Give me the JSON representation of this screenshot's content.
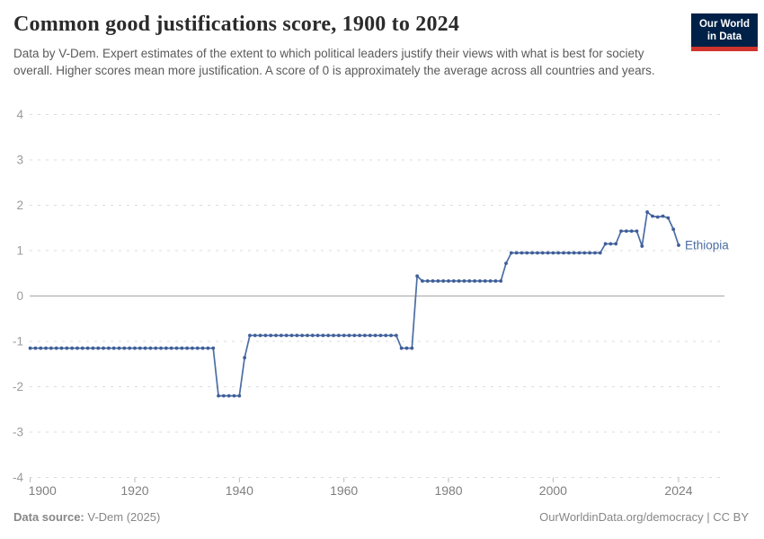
{
  "header": {
    "title": "Common good justifications score, 1900 to 2024",
    "subtitle": "Data by V-Dem. Expert estimates of the extent to which political leaders justify their views with what is best for society overall. Higher scores mean more justification. A score of 0 is approximately the average across all countries and years.",
    "logo": {
      "line1": "Our World",
      "line2": "in Data"
    }
  },
  "footer": {
    "source_label": "Data source:",
    "source_value": " V-Dem (2025)",
    "credit": "OurWorldinData.org/democracy | CC BY"
  },
  "colors": {
    "line": "#4c6da3",
    "marker": "#3f5e99",
    "logo_navy": "#002147",
    "logo_red": "#d0342c",
    "gridline": "#dcdcdc",
    "zero_line": "#a5a5a5",
    "axis_text": "#9b9b9b"
  },
  "chart_data": {
    "type": "line",
    "title": "Common good justifications score, 1900 to 2024",
    "xlabel": "",
    "ylabel": "",
    "xlim": [
      1900,
      2024
    ],
    "ylim": [
      -4,
      4
    ],
    "grid": "dashed horizontal gridlines, solid zero line",
    "legend_position": "label at end of line",
    "x_ticks": [
      1900,
      1920,
      1940,
      1960,
      1980,
      2000,
      2024
    ],
    "y_ticks": [
      4,
      3,
      2,
      1,
      0,
      -1,
      -2,
      -3,
      -4
    ],
    "series": [
      {
        "name": "Ethiopia",
        "color": "#4c6da3",
        "points": [
          [
            1900,
            -1.15
          ],
          [
            1901,
            -1.15
          ],
          [
            1902,
            -1.15
          ],
          [
            1903,
            -1.15
          ],
          [
            1904,
            -1.15
          ],
          [
            1905,
            -1.15
          ],
          [
            1906,
            -1.15
          ],
          [
            1907,
            -1.15
          ],
          [
            1908,
            -1.15
          ],
          [
            1909,
            -1.15
          ],
          [
            1910,
            -1.15
          ],
          [
            1911,
            -1.15
          ],
          [
            1912,
            -1.15
          ],
          [
            1913,
            -1.15
          ],
          [
            1914,
            -1.15
          ],
          [
            1915,
            -1.15
          ],
          [
            1916,
            -1.15
          ],
          [
            1917,
            -1.15
          ],
          [
            1918,
            -1.15
          ],
          [
            1919,
            -1.15
          ],
          [
            1920,
            -1.15
          ],
          [
            1921,
            -1.15
          ],
          [
            1922,
            -1.15
          ],
          [
            1923,
            -1.15
          ],
          [
            1924,
            -1.15
          ],
          [
            1925,
            -1.15
          ],
          [
            1926,
            -1.15
          ],
          [
            1927,
            -1.15
          ],
          [
            1928,
            -1.15
          ],
          [
            1929,
            -1.15
          ],
          [
            1930,
            -1.15
          ],
          [
            1931,
            -1.15
          ],
          [
            1932,
            -1.15
          ],
          [
            1933,
            -1.15
          ],
          [
            1934,
            -1.15
          ],
          [
            1935,
            -1.15
          ],
          [
            1936,
            -2.2
          ],
          [
            1937,
            -2.2
          ],
          [
            1938,
            -2.2
          ],
          [
            1939,
            -2.2
          ],
          [
            1940,
            -2.2
          ],
          [
            1941,
            -1.36
          ],
          [
            1942,
            -0.87
          ],
          [
            1943,
            -0.87
          ],
          [
            1944,
            -0.87
          ],
          [
            1945,
            -0.87
          ],
          [
            1946,
            -0.87
          ],
          [
            1947,
            -0.87
          ],
          [
            1948,
            -0.87
          ],
          [
            1949,
            -0.87
          ],
          [
            1950,
            -0.87
          ],
          [
            1951,
            -0.87
          ],
          [
            1952,
            -0.87
          ],
          [
            1953,
            -0.87
          ],
          [
            1954,
            -0.87
          ],
          [
            1955,
            -0.87
          ],
          [
            1956,
            -0.87
          ],
          [
            1957,
            -0.87
          ],
          [
            1958,
            -0.87
          ],
          [
            1959,
            -0.87
          ],
          [
            1960,
            -0.87
          ],
          [
            1961,
            -0.87
          ],
          [
            1962,
            -0.87
          ],
          [
            1963,
            -0.87
          ],
          [
            1964,
            -0.87
          ],
          [
            1965,
            -0.87
          ],
          [
            1966,
            -0.87
          ],
          [
            1967,
            -0.87
          ],
          [
            1968,
            -0.87
          ],
          [
            1969,
            -0.87
          ],
          [
            1970,
            -0.87
          ],
          [
            1971,
            -1.15
          ],
          [
            1972,
            -1.15
          ],
          [
            1973,
            -1.15
          ],
          [
            1974,
            0.44
          ],
          [
            1975,
            0.33
          ],
          [
            1976,
            0.33
          ],
          [
            1977,
            0.33
          ],
          [
            1978,
            0.33
          ],
          [
            1979,
            0.33
          ],
          [
            1980,
            0.33
          ],
          [
            1981,
            0.33
          ],
          [
            1982,
            0.33
          ],
          [
            1983,
            0.33
          ],
          [
            1984,
            0.33
          ],
          [
            1985,
            0.33
          ],
          [
            1986,
            0.33
          ],
          [
            1987,
            0.33
          ],
          [
            1988,
            0.33
          ],
          [
            1989,
            0.33
          ],
          [
            1990,
            0.33
          ],
          [
            1991,
            0.72
          ],
          [
            1992,
            0.95
          ],
          [
            1993,
            0.95
          ],
          [
            1994,
            0.95
          ],
          [
            1995,
            0.95
          ],
          [
            1996,
            0.95
          ],
          [
            1997,
            0.95
          ],
          [
            1998,
            0.95
          ],
          [
            1999,
            0.95
          ],
          [
            2000,
            0.95
          ],
          [
            2001,
            0.95
          ],
          [
            2002,
            0.95
          ],
          [
            2003,
            0.95
          ],
          [
            2004,
            0.95
          ],
          [
            2005,
            0.95
          ],
          [
            2006,
            0.95
          ],
          [
            2007,
            0.95
          ],
          [
            2008,
            0.95
          ],
          [
            2009,
            0.95
          ],
          [
            2010,
            1.15
          ],
          [
            2011,
            1.15
          ],
          [
            2012,
            1.15
          ],
          [
            2013,
            1.43
          ],
          [
            2014,
            1.43
          ],
          [
            2015,
            1.43
          ],
          [
            2016,
            1.43
          ],
          [
            2017,
            1.1
          ],
          [
            2018,
            1.85
          ],
          [
            2019,
            1.76
          ],
          [
            2020,
            1.74
          ],
          [
            2021,
            1.76
          ],
          [
            2022,
            1.72
          ],
          [
            2023,
            1.47
          ],
          [
            2024,
            1.12
          ]
        ]
      }
    ]
  }
}
